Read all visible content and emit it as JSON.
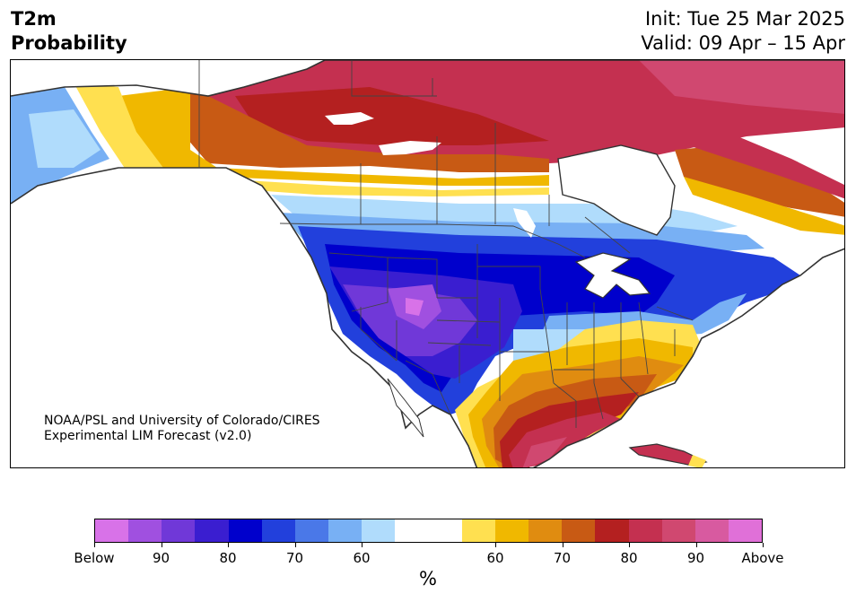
{
  "header": {
    "variable": "T2m",
    "product": "Probability",
    "init": "Init: Tue 25 Mar 2025",
    "valid": "Valid: 09 Apr – 15 Apr"
  },
  "credit": {
    "line1": "NOAA/PSL and University of Colorado/CIRES",
    "line2": "Experimental LIM Forecast (v2.0)"
  },
  "colorbar": {
    "colors": [
      "#d872e8",
      "#a050e0",
      "#7038d8",
      "#3a1ed0",
      "#0000cc",
      "#2240dc",
      "#4a78e8",
      "#78b0f4",
      "#b0dcfc",
      "#ffffff",
      "#ffffff",
      "#ffe050",
      "#f0b800",
      "#e08c10",
      "#c85a14",
      "#b42020",
      "#c43050",
      "#d04870",
      "#d85aa0",
      "#e070d8"
    ],
    "ticks": [
      "Below",
      "90",
      "80",
      "70",
      "60",
      "60",
      "70",
      "80",
      "90",
      "Above"
    ],
    "unit": "%"
  }
}
